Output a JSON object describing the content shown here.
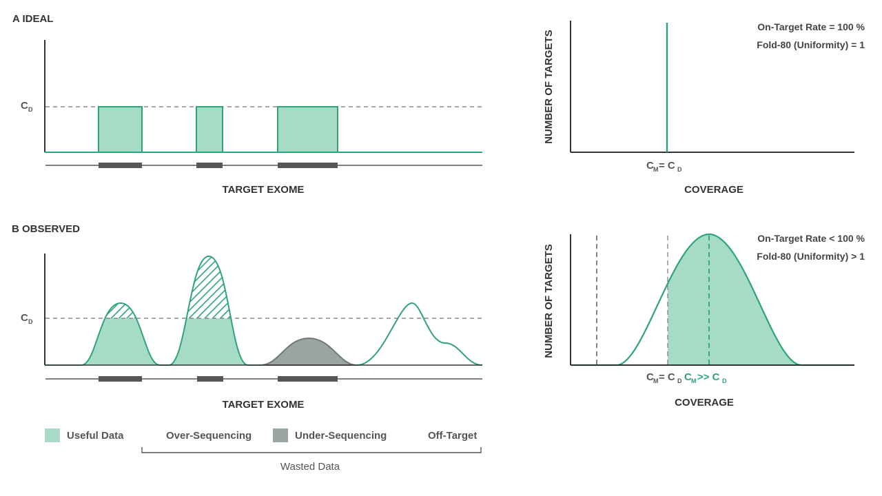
{
  "colors": {
    "fill": "#a6dcc5",
    "line": "#2ea37a",
    "wasted_fill": "#9aa5a1",
    "wasted_line": "#6f7a76",
    "bar": "#555555",
    "axis": "#333333",
    "dash": "#888888",
    "accent_text": "#2ea37a"
  },
  "panel_a": {
    "title": "A  IDEAL",
    "cd_label": "C",
    "cd_sub": "D",
    "x_label": "TARGET EXOME"
  },
  "panel_a_hist": {
    "y_label": "NUMBER OF TARGETS",
    "x_label": "COVERAGE",
    "annotation_1": "On-Target Rate = 100 %",
    "annotation_2": "Fold-80 (Uniformity) = 1",
    "tick_m": "C",
    "tick_m_sub": "M",
    "tick_eq": "= C",
    "tick_d_sub": "D"
  },
  "panel_b": {
    "title": "B  OBSERVED",
    "cd_label": "C",
    "cd_sub": "D",
    "x_label": "TARGET EXOME"
  },
  "panel_b_hist": {
    "y_label": "NUMBER OF TARGETS",
    "x_label": "COVERAGE",
    "annotation_1": "On-Target Rate < 100 %",
    "annotation_2": "Fold-80 (Uniformity) > 1",
    "tick1_m": "C",
    "tick1_m_sub": "M",
    "tick1_eq": "= C",
    "tick1_d_sub": "D",
    "tick2_m": "C",
    "tick2_m_sub": "M",
    "tick2_gg": ">> C",
    "tick2_d_sub": "D"
  },
  "legend": {
    "useful": "Useful Data",
    "over": "Over-Sequencing",
    "under": "Under-Sequencing",
    "off": "Off-Target",
    "wasted": "Wasted Data"
  }
}
